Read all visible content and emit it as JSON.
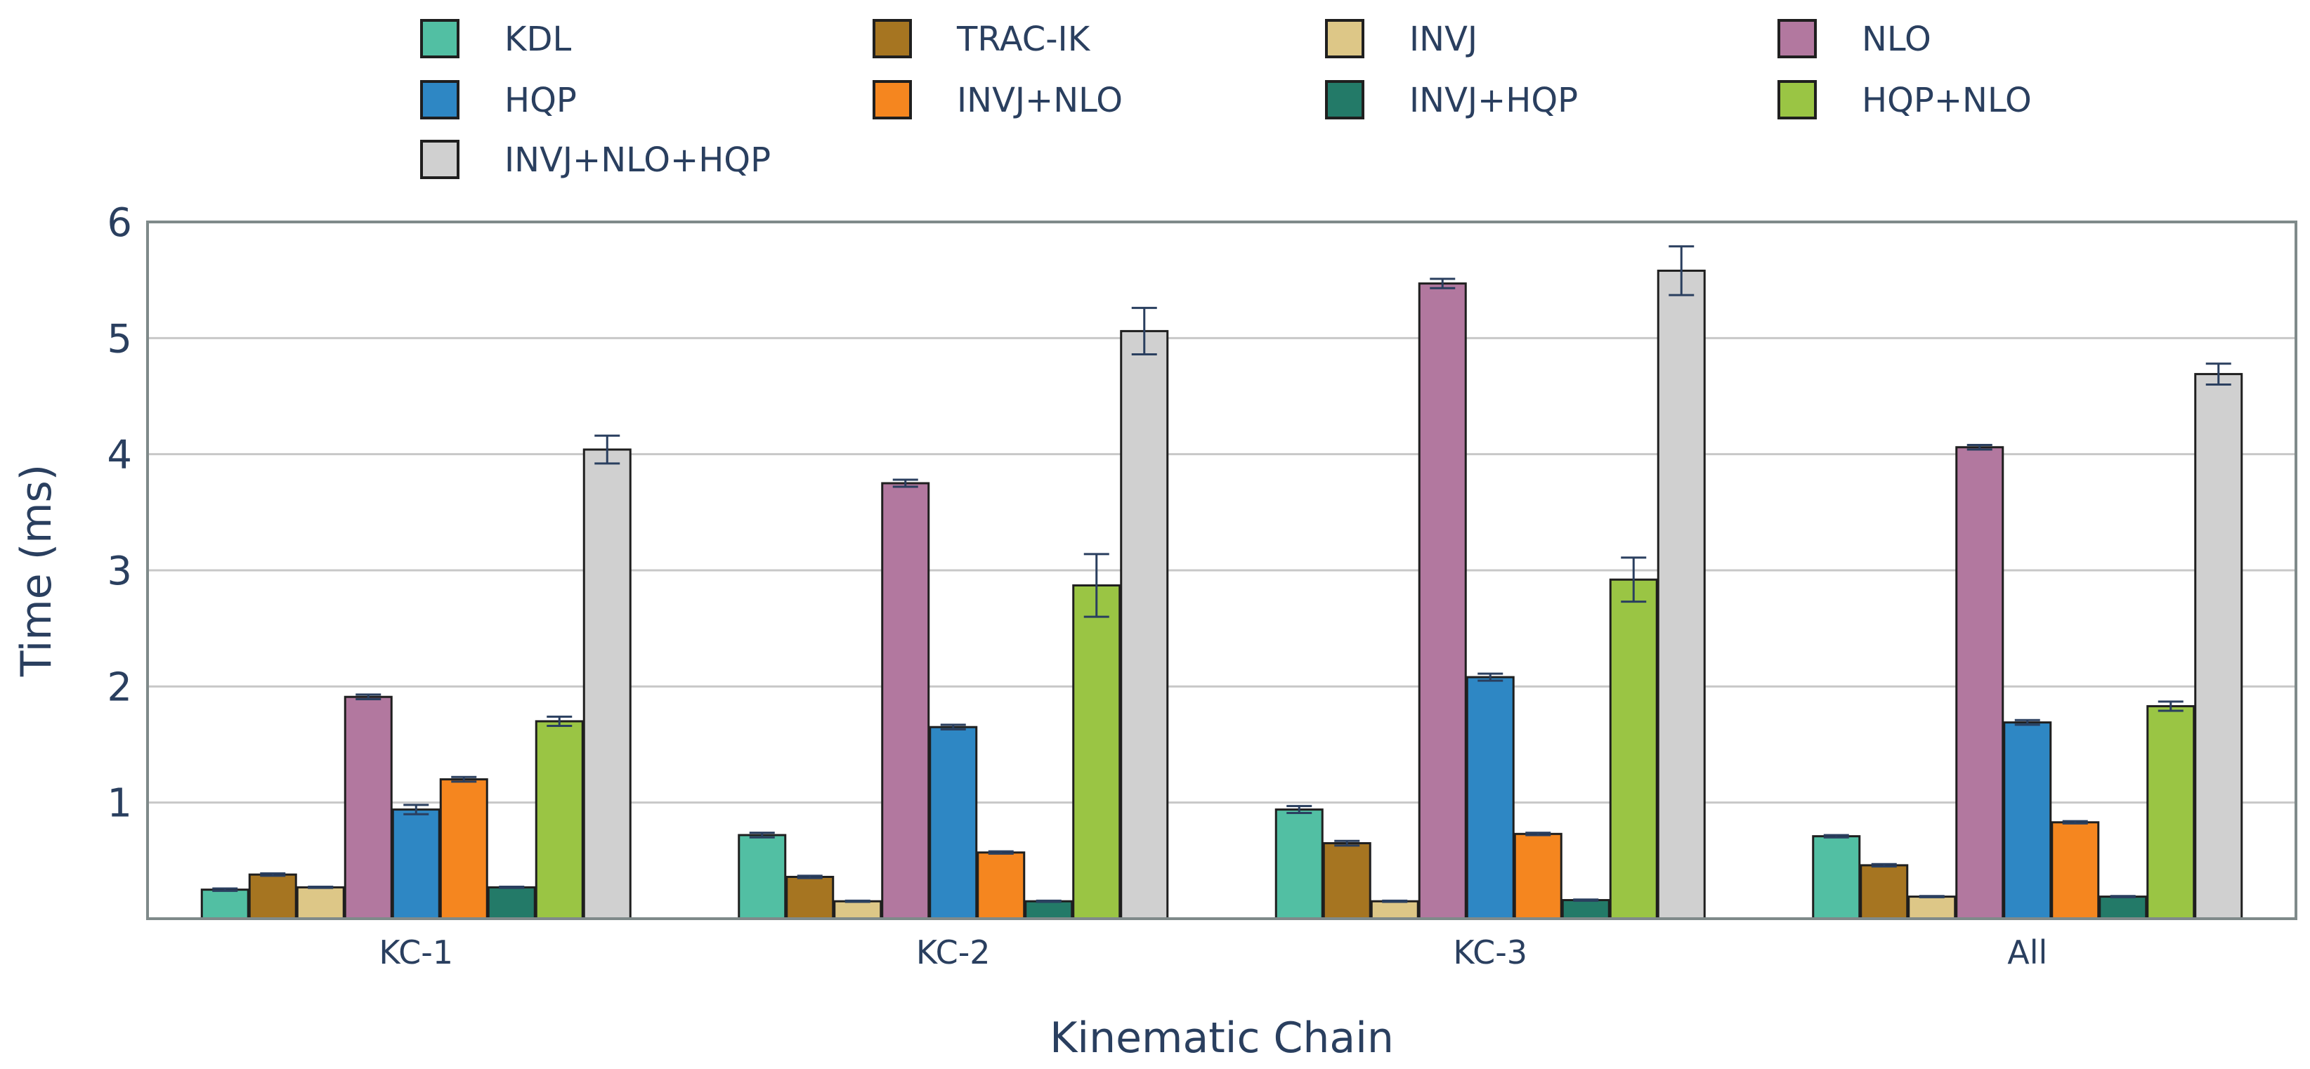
{
  "chart_data": {
    "type": "bar",
    "title": "",
    "xlabel": "Kinematic Chain",
    "ylabel": "Time (ms)",
    "ylim": [
      0,
      6
    ],
    "yticks": [
      1,
      2,
      3,
      4,
      5,
      6
    ],
    "grid": true,
    "legend_position": "top",
    "categories": [
      "KC-1",
      "KC-2",
      "KC-3",
      "All"
    ],
    "series": [
      {
        "name": "KDL",
        "color": "#52bfa3",
        "values": [
          0.25,
          0.72,
          0.94,
          0.71
        ],
        "errors": [
          0.01,
          0.02,
          0.03,
          0.01
        ]
      },
      {
        "name": "TRAC-IK",
        "color": "#a67521",
        "values": [
          0.38,
          0.36,
          0.65,
          0.46
        ],
        "errors": [
          0.01,
          0.01,
          0.02,
          0.01
        ]
      },
      {
        "name": "INVJ",
        "color": "#ddc787",
        "values": [
          0.27,
          0.15,
          0.15,
          0.19
        ],
        "errors": [
          0.005,
          0.005,
          0.005,
          0.005
        ]
      },
      {
        "name": "NLO",
        "color": "#b2789f",
        "values": [
          1.91,
          3.75,
          5.47,
          4.06
        ],
        "errors": [
          0.02,
          0.03,
          0.04,
          0.02
        ]
      },
      {
        "name": "HQP",
        "color": "#2e87c4",
        "values": [
          0.94,
          1.65,
          2.08,
          1.69
        ],
        "errors": [
          0.04,
          0.02,
          0.03,
          0.02
        ]
      },
      {
        "name": "INVJ+NLO",
        "color": "#f5861f",
        "values": [
          1.2,
          0.57,
          0.73,
          0.83
        ],
        "errors": [
          0.02,
          0.01,
          0.01,
          0.01
        ]
      },
      {
        "name": "INVJ+HQP",
        "color": "#237a68",
        "values": [
          0.27,
          0.15,
          0.16,
          0.19
        ],
        "errors": [
          0.005,
          0.005,
          0.005,
          0.005
        ]
      },
      {
        "name": "HQP+NLO",
        "color": "#9ac544",
        "values": [
          1.7,
          2.87,
          2.92,
          1.83
        ],
        "errors": [
          0.04,
          0.27,
          0.19,
          0.04
        ]
      },
      {
        "name": "INVJ+NLO+HQP",
        "color": "#d0d0d0",
        "values": [
          4.04,
          5.06,
          5.58,
          4.69
        ],
        "errors": [
          0.12,
          0.2,
          0.21,
          0.09
        ]
      }
    ]
  }
}
